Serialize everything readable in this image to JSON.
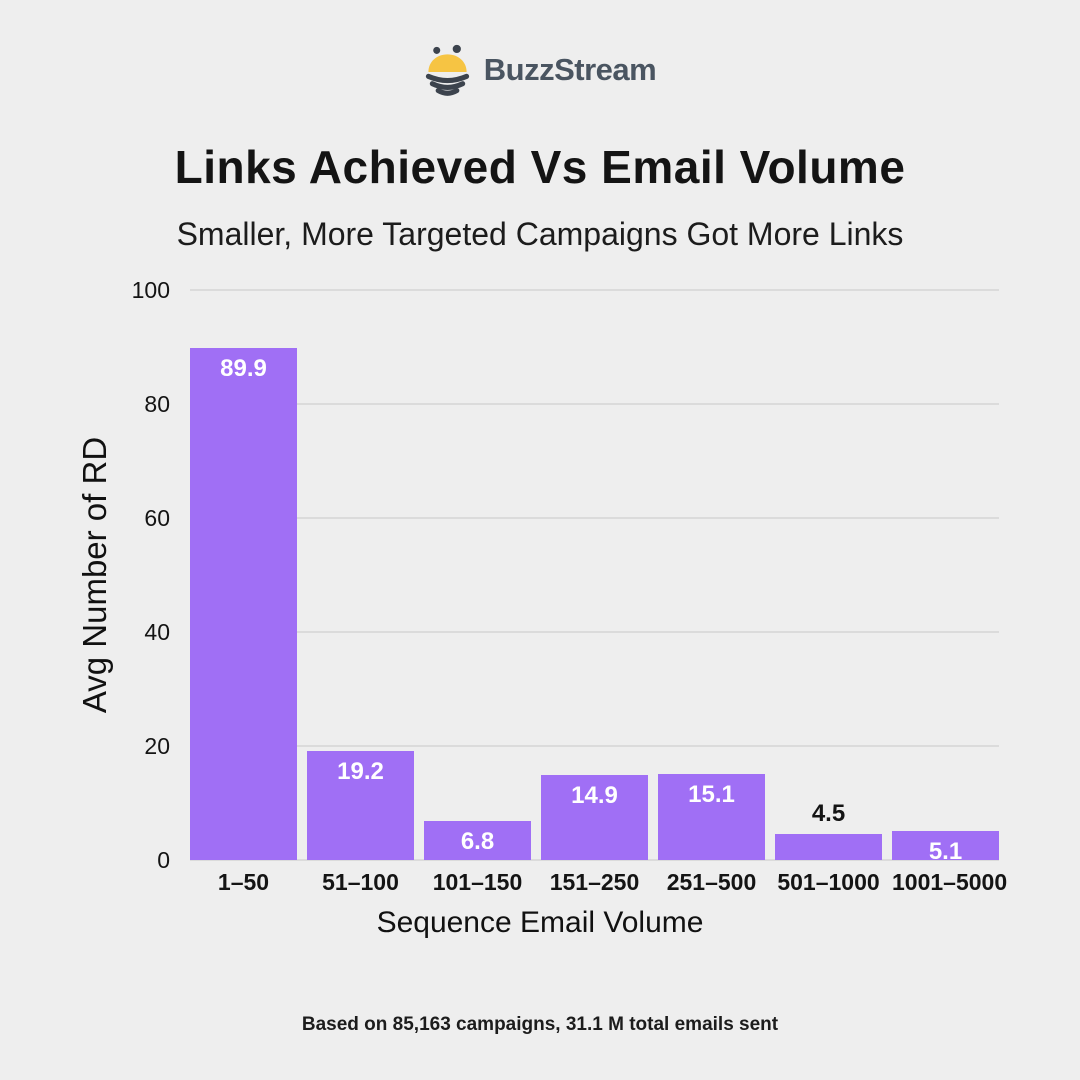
{
  "page": {
    "background": "#eeeeee"
  },
  "logo": {
    "brand": "BuzzStream",
    "icon": "bee-icon",
    "text_color": "#4a5561",
    "bee_yellow": "#f6c443",
    "bee_dark": "#3c434d"
  },
  "header": {
    "title": "Links Achieved Vs Email Volume",
    "subtitle": "Smaller, More Targeted Campaigns Got More Links"
  },
  "chart_data": {
    "type": "bar",
    "title": "Links Achieved Vs Email Volume",
    "categories": [
      "1–50",
      "51–100",
      "101–150",
      "151–250",
      "251–500",
      "501–1000",
      "1001–5000"
    ],
    "values": [
      89.9,
      19.2,
      6.8,
      14.9,
      15.1,
      4.5,
      5.1
    ],
    "value_label_position": [
      "inside",
      "inside",
      "inside",
      "inside",
      "inside",
      "outside",
      "inside"
    ],
    "xlabel": "Sequence Email Volume",
    "ylabel": "Avg Number of RD",
    "ylim": [
      0,
      100
    ],
    "yticks": [
      0,
      20,
      40,
      60,
      80,
      100
    ],
    "grid": true,
    "legend": "none",
    "bar_color": "#a06ff5",
    "gridline_color": "#dbdbdb",
    "value_label_color_inside": "#ffffff",
    "value_label_color_outside": "#141414"
  },
  "footer": {
    "note": "Based on 85,163 campaigns, 31.1 M total emails sent"
  }
}
